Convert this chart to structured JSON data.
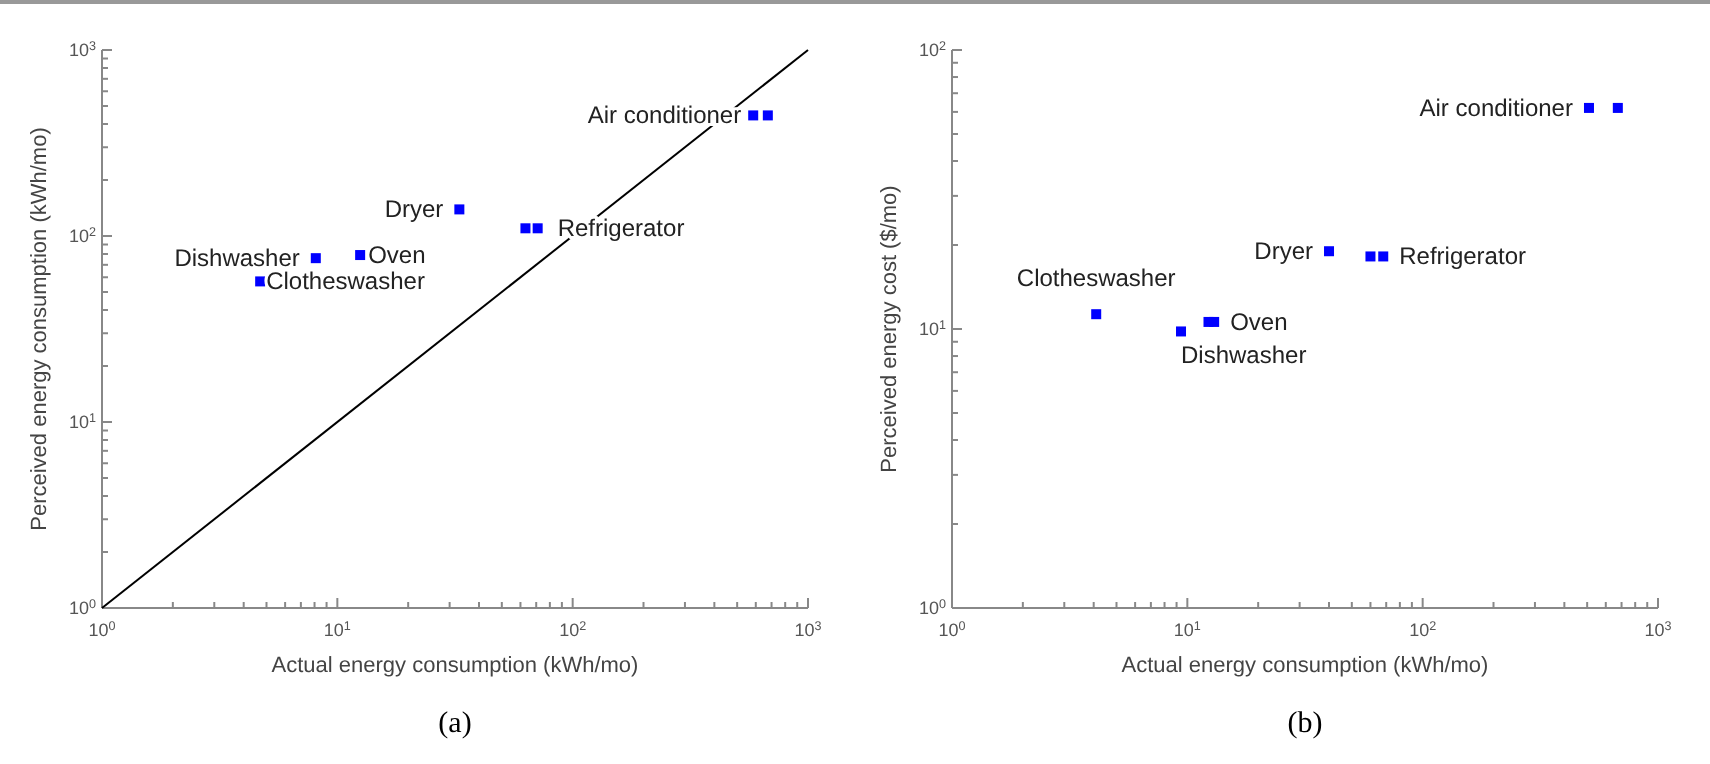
{
  "chart_data": [
    {
      "type": "scatter",
      "title": "(a)",
      "xlabel": "Actual energy consumption (kWh/mo)",
      "ylabel": "Perceived energy consumption (kWh/mo)",
      "log": "xy",
      "xlim": [
        1,
        1000
      ],
      "ylim": [
        1,
        1000
      ],
      "xticks": [
        {
          "value": 1,
          "label": "10$^{0}$"
        },
        {
          "value": 2,
          "label": null
        },
        {
          "value": 3,
          "label": null
        },
        {
          "value": 4,
          "label": null
        },
        {
          "value": 5,
          "label": null
        },
        {
          "value": 6,
          "label": null
        },
        {
          "value": 7,
          "label": null
        },
        {
          "value": 8,
          "label": null
        },
        {
          "value": 9,
          "label": null
        },
        {
          "value": 10,
          "label": "10$^{1}$"
        },
        {
          "value": 20,
          "label": null
        },
        {
          "value": 30,
          "label": null
        },
        {
          "value": 40,
          "label": null
        },
        {
          "value": 50,
          "label": null
        },
        {
          "value": 60,
          "label": null
        },
        {
          "value": 70,
          "label": null
        },
        {
          "value": 80,
          "label": null
        },
        {
          "value": 90,
          "label": null
        },
        {
          "value": 100,
          "label": "10$^{2}$"
        },
        {
          "value": 200,
          "label": null
        },
        {
          "value": 300,
          "label": null
        },
        {
          "value": 400,
          "label": null
        },
        {
          "value": 500,
          "label": null
        },
        {
          "value": 600,
          "label": null
        },
        {
          "value": 700,
          "label": null
        },
        {
          "value": 800,
          "label": null
        },
        {
          "value": 900,
          "label": null
        },
        {
          "value": 1000,
          "label": "10$^{3}$"
        }
      ],
      "yticks": [
        {
          "value": 1,
          "label": "10$^{0}$"
        },
        {
          "value": 2,
          "label": null
        },
        {
          "value": 3,
          "label": null
        },
        {
          "value": 4,
          "label": null
        },
        {
          "value": 5,
          "label": null
        },
        {
          "value": 6,
          "label": null
        },
        {
          "value": 7,
          "label": null
        },
        {
          "value": 8,
          "label": null
        },
        {
          "value": 9,
          "label": null
        },
        {
          "value": 10,
          "label": "10$^{1}$"
        },
        {
          "value": 20,
          "label": null
        },
        {
          "value": 30,
          "label": null
        },
        {
          "value": 40,
          "label": null
        },
        {
          "value": 50,
          "label": null
        },
        {
          "value": 60,
          "label": null
        },
        {
          "value": 70,
          "label": null
        },
        {
          "value": 80,
          "label": null
        },
        {
          "value": 90,
          "label": null
        },
        {
          "value": 100,
          "label": "10$^{2}$"
        },
        {
          "value": 200,
          "label": null
        },
        {
          "value": 300,
          "label": null
        },
        {
          "value": 400,
          "label": null
        },
        {
          "value": 500,
          "label": null
        },
        {
          "value": 600,
          "label": null
        },
        {
          "value": 700,
          "label": null
        },
        {
          "value": 800,
          "label": null
        },
        {
          "value": 900,
          "label": null
        },
        {
          "value": 1000,
          "label": "10$^{3}$"
        }
      ],
      "series": [
        {
          "type": "line",
          "color": "#000000",
          "x": [
            1,
            1000
          ],
          "values": [
            1,
            1000
          ]
        },
        {
          "type": "scatter",
          "marker": "square",
          "color": "#0000ff",
          "x": [
            585,
            675,
            33,
            63,
            71,
            8.1,
            12.5,
            4.7
          ],
          "values": [
            445,
            445,
            139,
            110,
            110,
            76,
            79,
            57
          ]
        }
      ],
      "annotations": [
        {
          "text": "Air conditioner",
          "x": 585,
          "y": 445
        },
        {
          "text": "Dryer",
          "x": 33,
          "y": 139
        },
        {
          "text": "Refrigerator",
          "x": 71,
          "y": 110
        },
        {
          "text": "Dishwasher",
          "x": 8.1,
          "y": 76
        },
        {
          "text": "Oven",
          "x": 12.5,
          "y": 79
        },
        {
          "text": "Clotheswasher",
          "x": 4.7,
          "y": 57
        }
      ]
    },
    {
      "type": "scatter",
      "title": "(b)",
      "xlabel": "Actual energy consumption (kWh/mo)",
      "ylabel": "Perceived energy cost ($/mo)",
      "log": "xy",
      "xlim": [
        1,
        1000
      ],
      "ylim": [
        1,
        100
      ],
      "xticks": [
        {
          "value": 1,
          "label": "10$^{0}$"
        },
        {
          "value": 2,
          "label": null
        },
        {
          "value": 3,
          "label": null
        },
        {
          "value": 4,
          "label": null
        },
        {
          "value": 5,
          "label": null
        },
        {
          "value": 6,
          "label": null
        },
        {
          "value": 7,
          "label": null
        },
        {
          "value": 8,
          "label": null
        },
        {
          "value": 9,
          "label": null
        },
        {
          "value": 10,
          "label": "10$^{1}$"
        },
        {
          "value": 20,
          "label": null
        },
        {
          "value": 30,
          "label": null
        },
        {
          "value": 40,
          "label": null
        },
        {
          "value": 50,
          "label": null
        },
        {
          "value": 60,
          "label": null
        },
        {
          "value": 70,
          "label": null
        },
        {
          "value": 80,
          "label": null
        },
        {
          "value": 90,
          "label": null
        },
        {
          "value": 100,
          "label": "10$^{2}$"
        },
        {
          "value": 200,
          "label": null
        },
        {
          "value": 300,
          "label": null
        },
        {
          "value": 400,
          "label": null
        },
        {
          "value": 500,
          "label": null
        },
        {
          "value": 600,
          "label": null
        },
        {
          "value": 700,
          "label": null
        },
        {
          "value": 800,
          "label": null
        },
        {
          "value": 900,
          "label": null
        },
        {
          "value": 1000,
          "label": "10$^{3}$"
        }
      ],
      "yticks": [
        {
          "value": 1,
          "label": "10$^{0}$"
        },
        {
          "value": 2,
          "label": null
        },
        {
          "value": 3,
          "label": null
        },
        {
          "value": 4,
          "label": null
        },
        {
          "value": 5,
          "label": null
        },
        {
          "value": 6,
          "label": null
        },
        {
          "value": 7,
          "label": null
        },
        {
          "value": 8,
          "label": null
        },
        {
          "value": 9,
          "label": null
        },
        {
          "value": 10,
          "label": "10$^{1}$"
        },
        {
          "value": 20,
          "label": null
        },
        {
          "value": 30,
          "label": null
        },
        {
          "value": 40,
          "label": null
        },
        {
          "value": 50,
          "label": null
        },
        {
          "value": 60,
          "label": null
        },
        {
          "value": 70,
          "label": null
        },
        {
          "value": 80,
          "label": null
        },
        {
          "value": 90,
          "label": null
        },
        {
          "value": 100,
          "label": "10$^{2}$"
        }
      ],
      "series": [
        {
          "type": "scatter",
          "marker": "square",
          "color": "#0000ff",
          "x": [
            509,
            675,
            40,
            60,
            68,
            4.1,
            9.4,
            12.3,
            13
          ],
          "values": [
            62,
            62,
            19,
            18.2,
            18.2,
            11.3,
            9.8,
            10.6,
            10.6
          ]
        }
      ],
      "annotations": [
        {
          "text": "Air conditioner",
          "x": 509,
          "y": 62
        },
        {
          "text": "Dryer",
          "x": 40,
          "y": 19
        },
        {
          "text": "Refrigerator",
          "x": 68,
          "y": 18.2
        },
        {
          "text": "Clotheswasher",
          "x": 4.1,
          "y": 11.3
        },
        {
          "text": "Oven",
          "x": 13,
          "y": 10.6
        },
        {
          "text": "Dishwasher",
          "x": 9.4,
          "y": 9.8
        }
      ]
    }
  ]
}
